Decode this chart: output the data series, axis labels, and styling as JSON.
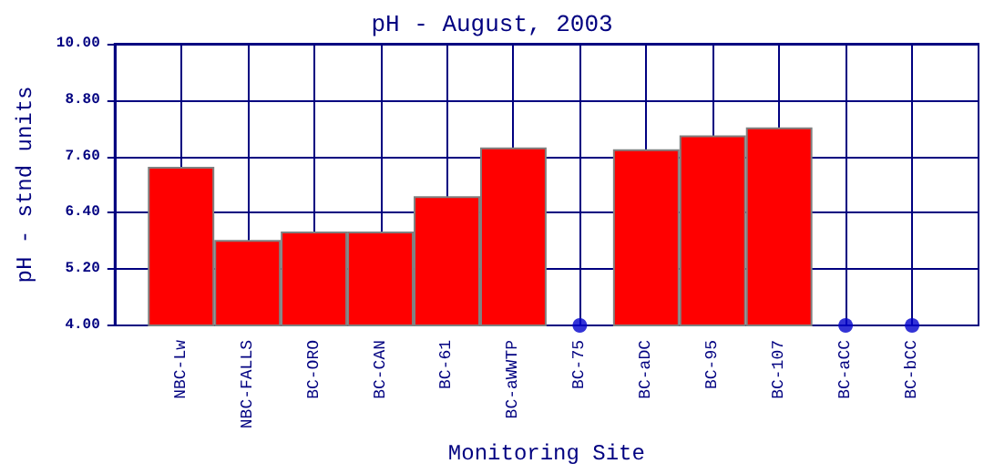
{
  "chart_data": {
    "type": "bar",
    "title": "pH - August, 2003",
    "xlabel": "Monitoring Site",
    "ylabel": "pH - stnd units",
    "categories": [
      "NBC-Lw",
      "NBC-FALLS",
      "BC-ORO",
      "BC-CAN",
      "BC-61",
      "BC-aWWTP",
      "BC-75",
      "BC-aDC",
      "BC-95",
      "BC-107",
      "BC-aCC",
      "BC-bCC"
    ],
    "series": [
      {
        "color": "#ff0000",
        "values": [
          7.38,
          5.82,
          6.0,
          6.0,
          6.75,
          7.79,
          null,
          7.75,
          8.05,
          8.22,
          null,
          null
        ]
      },
      {
        "type": "scatter",
        "color": "#0000cc",
        "marker": "circle",
        "x": [
          "BC-75",
          "BC-aCC",
          "BC-bCC"
        ],
        "values": [
          4.0,
          4.0,
          4.0
        ]
      }
    ],
    "ylim": [
      4,
      10
    ],
    "yticks": [
      {
        "value": 4,
        "label": "4.00"
      },
      {
        "value": 5.2,
        "label": "5.20"
      },
      {
        "value": 6.4,
        "label": "6.40"
      },
      {
        "value": 7.6,
        "label": "7.60"
      },
      {
        "value": 8.8,
        "label": "8.80"
      },
      {
        "value": 10,
        "label": "10.00"
      }
    ],
    "grid": true
  }
}
